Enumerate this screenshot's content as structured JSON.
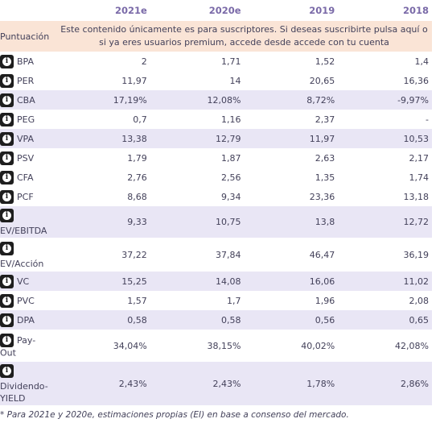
{
  "header": {
    "col1": "2021e",
    "col2": "2020e",
    "col3": "2019",
    "col4": "2018"
  },
  "premium": {
    "label": "Puntuación",
    "message": "Este contenido únicamente es para suscriptores. Si deseas suscribirte pulsa aquí o si ya eres usuarios premium, accede desde accede con tu cuenta"
  },
  "rows": [
    {
      "label": "BPA",
      "v1": "2",
      "v2": "1,71",
      "v3": "1,52",
      "v4": "1,4"
    },
    {
      "label": "PER",
      "v1": "11,97",
      "v2": "14",
      "v3": "20,65",
      "v4": "16,36"
    },
    {
      "label": "CBA",
      "v1": "17,19%",
      "v2": "12,08%",
      "v3": "8,72%",
      "v4": "-9,97%"
    },
    {
      "label": "PEG",
      "v1": "0,7",
      "v2": "1,16",
      "v3": "2,37",
      "v4": "-"
    },
    {
      "label": "VPA",
      "v1": "13,38",
      "v2": "12,79",
      "v3": "11,97",
      "v4": "10,53"
    },
    {
      "label": "PSV",
      "v1": "1,79",
      "v2": "1,87",
      "v3": "2,63",
      "v4": "2,17"
    },
    {
      "label": "CFA",
      "v1": "2,76",
      "v2": "2,56",
      "v3": "1,35",
      "v4": "1,74"
    },
    {
      "label": "PCF",
      "v1": "8,68",
      "v2": "9,34",
      "v3": "23,36",
      "v4": "13,18"
    },
    {
      "label": "EV/EBITDA",
      "v1": "9,33",
      "v2": "10,75",
      "v3": "13,8",
      "v4": "12,72"
    },
    {
      "label": "EV/Acción",
      "v1": "37,22",
      "v2": "37,84",
      "v3": "46,47",
      "v4": "36,19"
    },
    {
      "label": "VC",
      "v1": "15,25",
      "v2": "14,08",
      "v3": "16,06",
      "v4": "11,02"
    },
    {
      "label": "PVC",
      "v1": "1,57",
      "v2": "1,7",
      "v3": "1,96",
      "v4": "2,08"
    },
    {
      "label": "DPA",
      "v1": "0,58",
      "v2": "0,58",
      "v3": "0,56",
      "v4": "0,65"
    },
    {
      "label1": "Pay-",
      "label2": "Out",
      "v1": "34,04%",
      "v2": "38,15%",
      "v3": "40,02%",
      "v4": "42,08%"
    },
    {
      "label1": "Dividendo-",
      "label2": "YIELD",
      "v1": "2,43%",
      "v2": "2,43%",
      "v3": "1,78%",
      "v4": "2,86%"
    }
  ],
  "footnote": "* Para 2021e y 2020e, estimaciones propias (EI) en base a consenso del mercado."
}
